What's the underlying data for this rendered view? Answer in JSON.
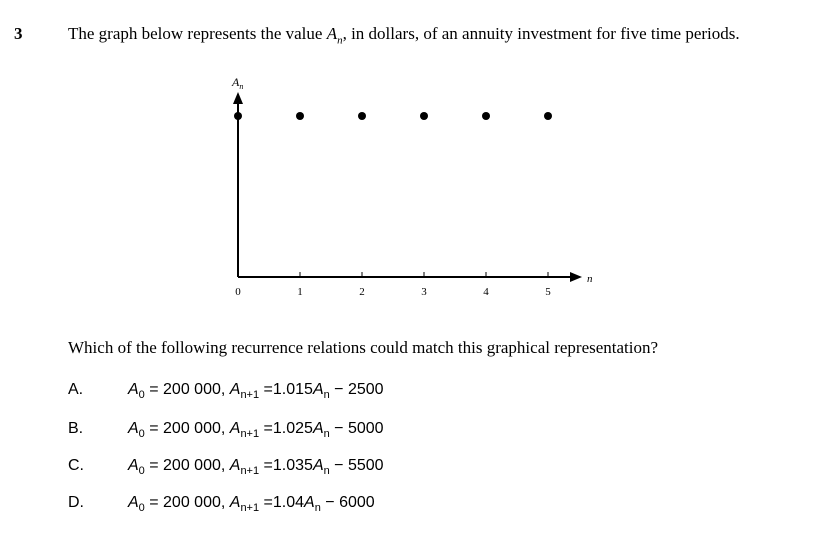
{
  "question": {
    "number": "3",
    "stem_before": "The graph below represents the value ",
    "stem_var": "A",
    "stem_sub": "n",
    "stem_after": ", in dollars, of an annuity investment for five time periods.",
    "prompt": "Which of the following recurrence relations could match this graphical representation?"
  },
  "chart_data": {
    "type": "scatter",
    "title": "",
    "xlabel": "n",
    "ylabel": "A_n",
    "x_ticks": [
      "0",
      "1",
      "2",
      "3",
      "4",
      "5"
    ],
    "y_ticks": [],
    "points": [
      {
        "x": 0,
        "y": 200000
      },
      {
        "x": 1,
        "y": 200000
      },
      {
        "x": 2,
        "y": 200000
      },
      {
        "x": 3,
        "y": 200000
      },
      {
        "x": 4,
        "y": 200000
      },
      {
        "x": 5,
        "y": 200000
      }
    ],
    "grid": false
  },
  "options": [
    {
      "letter": "A.",
      "init": "= 200 000,",
      "rule_coef": "=1.015",
      "rule_const": " − 2500"
    },
    {
      "letter": "B.",
      "init": "= 200 000,",
      "rule_coef": "=1.025",
      "rule_const": " − 5000"
    },
    {
      "letter": "C.",
      "init": "= 200 000,",
      "rule_coef": "=1.035",
      "rule_const": " − 5500"
    },
    {
      "letter": "D.",
      "init": "= 200 000,",
      "rule_coef": "=1.04",
      "rule_const": " − 6000"
    }
  ],
  "symbols": {
    "var": "A",
    "sub0": "0",
    "sub_next": "n+1",
    "sub_n": "n"
  }
}
